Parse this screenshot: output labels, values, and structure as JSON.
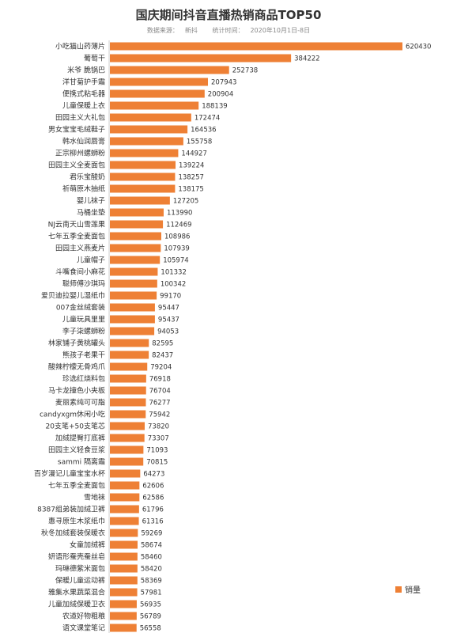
{
  "chart_data": {
    "type": "bar",
    "orientation": "horizontal",
    "title": "国庆期间抖音直播热销商品TOP50",
    "source_label": "数据来源：",
    "source_value": "新抖",
    "period_label": "统计时间：",
    "period_value": "2020年10月1日-8日",
    "legend_position": "bottom-right",
    "grid": false,
    "bar_color": "#EE8035",
    "xlim": [
      0,
      620430
    ],
    "categories": [
      "小吃猫山药薄片",
      "葡萄干",
      "米爷 脆锅巴",
      "洋甘菊护手霜",
      "便携式粘毛器",
      "儿童保暖上衣",
      "田园主义大礼包",
      "男女宝宝毛绒鞋子",
      "韩水仙润唇膏",
      "正宗柳州螺蛳粉",
      "田园主义全麦面包",
      "君乐宝酸奶",
      "祈萌原木抽纸",
      "婴儿袜子",
      "马桶坐垫",
      "NJ云南天山雪莲果",
      "七年五季全麦面包",
      "田园主义燕麦片",
      "儿童帽子",
      "斗嘴食间小麻花",
      "聪师傅沙琪玛",
      "爱贝迪拉婴儿湿纸巾",
      "007金丝绒套装",
      "儿童玩具里里",
      "李子柒螺蛳粉",
      "林家铺子黄桃罐头",
      "熊孩子老果干",
      "酸辣柠檬无骨鸡爪",
      "珍选红烧料包",
      "马卡龙撞色小夹板",
      "麦丽素纯可可脂",
      "candyxgm休闲小吃",
      "20支笔+50支笔芯",
      "加绒提臀打底裤",
      "田园主义轻食豆浆",
      "sammi 隔离霜",
      "百岁漫记儿童宝宝水杯",
      "七年五季全麦面包",
      "雪地袜",
      "8387组弟装加绒卫裤",
      "惠寻原生木浆纸巾",
      "秋冬加绒套装保暖衣",
      "女童加绒裤",
      "妍语形蚕壳蚕丝皂",
      "玛琳德紫米面包",
      "保暖儿童运动裤",
      "雅集水果蔬菜混合",
      "儿童加绒保暖卫衣",
      "农道好物粗粮",
      "语文课堂笔记"
    ],
    "series": [
      {
        "name": "销量",
        "values": [
          620430,
          384222,
          252738,
          207943,
          200904,
          188139,
          172474,
          164536,
          155758,
          144927,
          139224,
          138257,
          138175,
          127205,
          113990,
          112469,
          108986,
          107939,
          105974,
          101332,
          100342,
          99170,
          95447,
          95437,
          94053,
          82595,
          82437,
          79204,
          76918,
          76704,
          76277,
          75942,
          73820,
          73307,
          71093,
          70815,
          64273,
          62606,
          62586,
          61796,
          61316,
          59269,
          58674,
          58460,
          58420,
          58369,
          57981,
          56935,
          56789,
          56558
        ]
      }
    ]
  }
}
